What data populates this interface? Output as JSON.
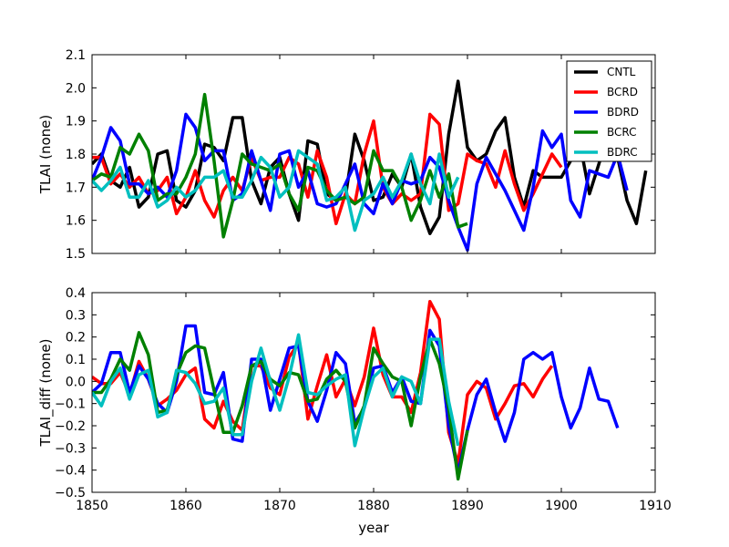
{
  "chart_data": [
    {
      "type": "line",
      "title": "",
      "xlabel": "",
      "ylabel": "TLAI (none)",
      "xlim": [
        1850,
        1910
      ],
      "ylim": [
        1.5,
        2.1
      ],
      "xticks": [
        1850,
        1860,
        1870,
        1880,
        1890,
        1900,
        1910
      ],
      "show_xticklabels": false,
      "yticks": [
        1.5,
        1.6,
        1.7,
        1.8,
        1.9,
        2.0,
        2.1
      ],
      "ytick_labels": [
        "1.5",
        "1.6",
        "1.7",
        "1.8",
        "1.9",
        "2.0",
        "2.1"
      ],
      "legend": {
        "position": "top-right"
      },
      "series": [
        {
          "name": "CNTL",
          "color": "#000000",
          "x_start": 1850,
          "values": [
            1.77,
            1.8,
            1.72,
            1.7,
            1.76,
            1.64,
            1.67,
            1.8,
            1.81,
            1.66,
            1.64,
            1.69,
            1.83,
            1.82,
            1.78,
            1.91,
            1.91,
            1.72,
            1.65,
            1.76,
            1.79,
            1.68,
            1.6,
            1.84,
            1.83,
            1.68,
            1.66,
            1.67,
            1.86,
            1.78,
            1.66,
            1.67,
            1.74,
            1.7,
            1.8,
            1.64,
            1.56,
            1.61,
            1.86,
            2.02,
            1.82,
            1.78,
            1.8,
            1.87,
            1.91,
            1.73,
            1.64,
            1.75,
            1.73,
            1.73,
            1.73,
            1.78,
            1.83,
            1.68,
            1.77,
            1.86,
            1.79,
            1.66,
            1.59,
            1.75
          ]
        },
        {
          "name": "BCRD",
          "color": "#ff0000",
          "x_start": 1850,
          "values": [
            1.79,
            1.79,
            1.71,
            1.74,
            1.7,
            1.73,
            1.68,
            1.69,
            1.73,
            1.62,
            1.67,
            1.75,
            1.66,
            1.61,
            1.69,
            1.73,
            1.69,
            1.79,
            1.72,
            1.73,
            1.73,
            1.79,
            1.77,
            1.67,
            1.81,
            1.73,
            1.59,
            1.68,
            1.65,
            1.8,
            1.9,
            1.7,
            1.65,
            1.68,
            1.66,
            1.68,
            1.92,
            1.89,
            1.63,
            1.65,
            1.8,
            1.78,
            1.77,
            1.7,
            1.81,
            1.71,
            1.63,
            1.68,
            1.74,
            1.8,
            1.76
          ]
        },
        {
          "name": "BDRD",
          "color": "#0000ff",
          "x_start": 1850,
          "values": [
            1.72,
            1.79,
            1.88,
            1.84,
            1.71,
            1.71,
            1.68,
            1.7,
            1.67,
            1.75,
            1.92,
            1.88,
            1.78,
            1.81,
            1.81,
            1.66,
            1.68,
            1.81,
            1.72,
            1.63,
            1.8,
            1.81,
            1.7,
            1.75,
            1.65,
            1.64,
            1.65,
            1.71,
            1.77,
            1.65,
            1.62,
            1.71,
            1.65,
            1.72,
            1.71,
            1.72,
            1.79,
            1.76,
            1.66,
            1.58,
            1.51,
            1.71,
            1.79,
            1.74,
            1.69,
            1.63,
            1.57,
            1.7,
            1.87,
            1.82,
            1.86,
            1.66,
            1.61,
            1.75,
            1.74,
            1.73,
            1.8,
            1.69
          ]
        },
        {
          "name": "BCRC",
          "color": "#008000",
          "x_start": 1850,
          "values": [
            1.72,
            1.74,
            1.73,
            1.82,
            1.8,
            1.86,
            1.81,
            1.66,
            1.68,
            1.68,
            1.73,
            1.8,
            1.98,
            1.78,
            1.55,
            1.66,
            1.8,
            1.77,
            1.76,
            1.75,
            1.77,
            1.68,
            1.63,
            1.76,
            1.75,
            1.69,
            1.66,
            1.67,
            1.65,
            1.67,
            1.81,
            1.75,
            1.75,
            1.7,
            1.6,
            1.66,
            1.75,
            1.67,
            1.74,
            1.58,
            1.59
          ]
        },
        {
          "name": "BDRC",
          "color": "#00bfbf",
          "x_start": 1850,
          "values": [
            1.72,
            1.69,
            1.72,
            1.76,
            1.67,
            1.67,
            1.72,
            1.64,
            1.66,
            1.7,
            1.67,
            1.69,
            1.73,
            1.73,
            1.75,
            1.67,
            1.67,
            1.72,
            1.79,
            1.76,
            1.67,
            1.7,
            1.81,
            1.79,
            1.77,
            1.66,
            1.67,
            1.7,
            1.57,
            1.66,
            1.68,
            1.73,
            1.67,
            1.72,
            1.8,
            1.71,
            1.65,
            1.8,
            1.67,
            1.73
          ]
        }
      ]
    },
    {
      "type": "line",
      "title": "",
      "xlabel": "year",
      "ylabel": "TLAI_diff (none)",
      "xlim": [
        1850,
        1910
      ],
      "ylim": [
        -0.5,
        0.4
      ],
      "xticks": [
        1850,
        1860,
        1870,
        1880,
        1890,
        1900,
        1910
      ],
      "xtick_labels": [
        "1850",
        "1860",
        "1870",
        "1880",
        "1890",
        "1900",
        "1910"
      ],
      "show_xticklabels": true,
      "yticks": [
        -0.5,
        -0.4,
        -0.3,
        -0.2,
        -0.1,
        0.0,
        0.1,
        0.2,
        0.3,
        0.4
      ],
      "ytick_labels": [
        "−0.5",
        "−0.4",
        "−0.3",
        "−0.2",
        "−0.1",
        "0.0",
        "0.1",
        "0.2",
        "0.3",
        "0.4"
      ],
      "series": [
        {
          "name": "BCRD",
          "color": "#ff0000",
          "x_start": 1850,
          "values": [
            0.02,
            -0.01,
            -0.01,
            0.04,
            -0.06,
            0.09,
            0.01,
            -0.11,
            -0.08,
            -0.04,
            0.03,
            0.06,
            -0.17,
            -0.21,
            -0.09,
            -0.18,
            -0.22,
            0.07,
            0.07,
            -0.03,
            -0.06,
            0.11,
            0.17,
            -0.17,
            -0.02,
            0.12,
            -0.07,
            0.01,
            -0.11,
            0.02,
            0.24,
            0.03,
            -0.07,
            -0.07,
            -0.14,
            0.04,
            0.36,
            0.28,
            -0.23,
            -0.37,
            -0.06,
            0.0,
            -0.03,
            -0.17,
            -0.1,
            -0.02,
            -0.01,
            -0.07,
            0.01,
            0.07
          ]
        },
        {
          "name": "BDRD",
          "color": "#0000ff",
          "x_start": 1850,
          "values": [
            -0.05,
            -0.01,
            0.13,
            0.13,
            -0.05,
            0.07,
            0.01,
            -0.1,
            -0.14,
            0.0,
            0.25,
            0.25,
            -0.05,
            -0.06,
            0.04,
            -0.26,
            -0.27,
            0.1,
            0.1,
            -0.13,
            0.01,
            0.15,
            0.16,
            -0.09,
            -0.18,
            -0.04,
            0.13,
            0.08,
            -0.19,
            -0.12,
            0.06,
            0.07,
            -0.05,
            0.02,
            -0.09,
            -0.1,
            0.23,
            0.16,
            -0.2,
            -0.41,
            -0.22,
            -0.06,
            0.01,
            -0.14,
            -0.27,
            -0.14,
            0.1,
            0.13,
            0.1,
            0.13,
            -0.07,
            -0.21,
            -0.12,
            0.06,
            -0.08,
            -0.09,
            -0.21
          ]
        },
        {
          "name": "BCRC",
          "color": "#008000",
          "x_start": 1850,
          "values": [
            -0.05,
            -0.05,
            0.01,
            0.1,
            0.05,
            0.22,
            0.12,
            -0.14,
            -0.13,
            0.03,
            0.13,
            0.16,
            0.15,
            -0.04,
            -0.23,
            -0.23,
            -0.11,
            0.07,
            0.09,
            0.01,
            -0.02,
            0.04,
            0.03,
            -0.09,
            -0.08,
            0.01,
            0.05,
            0.0,
            -0.21,
            -0.11,
            0.15,
            0.08,
            0.02,
            0.0,
            -0.2,
            0.02,
            0.19,
            0.08,
            -0.12,
            -0.44,
            -0.22
          ]
        },
        {
          "name": "BDRC",
          "color": "#00bfbf",
          "x_start": 1850,
          "values": [
            -0.05,
            -0.11,
            0.0,
            0.06,
            -0.08,
            0.03,
            0.05,
            -0.16,
            -0.14,
            0.05,
            0.04,
            -0.01,
            -0.1,
            -0.09,
            -0.03,
            -0.24,
            -0.24,
            0.0,
            0.15,
            0.0,
            -0.13,
            0.02,
            0.21,
            -0.05,
            -0.06,
            -0.02,
            0.01,
            0.03,
            -0.29,
            -0.12,
            0.02,
            0.06,
            -0.07,
            0.02,
            0.0,
            -0.1,
            0.19,
            0.19,
            -0.09,
            -0.29
          ]
        }
      ]
    }
  ]
}
